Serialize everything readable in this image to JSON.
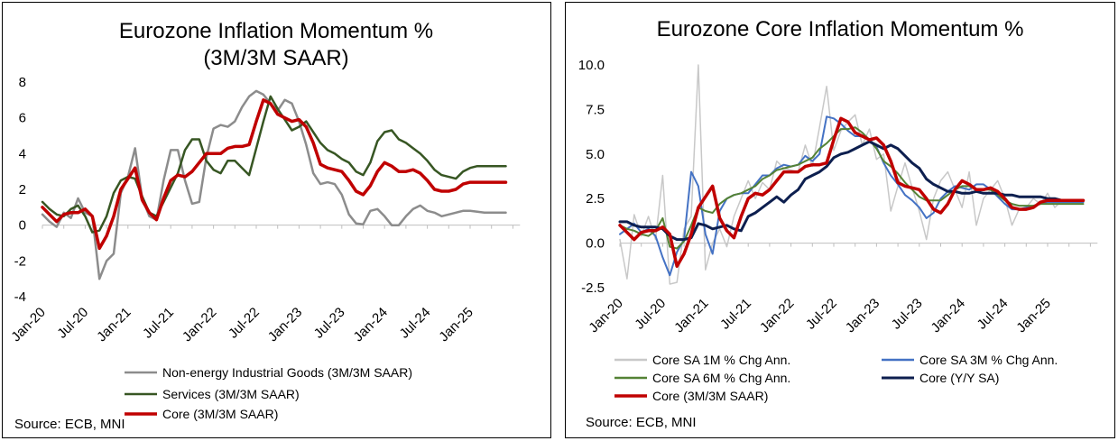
{
  "chart_data": [
    {
      "type": "line",
      "title_lines": [
        "Eurozone Inflation Momentum %",
        "(3M/3M SAAR)"
      ],
      "source": "Source: ECB, MNI",
      "x_tick_labels": [
        "Jan-20",
        "Jul-20",
        "Jan-21",
        "Jul-21",
        "Jan-22",
        "Jul-22",
        "Jan-23",
        "Jul-23",
        "Jan-24",
        "Jul-24",
        "Jan-25"
      ],
      "y_tick_labels": [
        "8",
        "6",
        "4",
        "2",
        "0",
        "-2",
        "-4"
      ],
      "ylim": [
        -4,
        8
      ],
      "n_months": 66,
      "series": [
        {
          "name": "Non-energy Industrial Goods (3M/3M SAAR)",
          "color": "#8c8c8c",
          "width": 2.5,
          "values": [
            0.6,
            0.2,
            -0.1,
            0.7,
            0.4,
            1.5,
            0.7,
            0.5,
            -3.0,
            -2.0,
            -1.6,
            1.8,
            2.7,
            4.3,
            1.5,
            0.5,
            0.3,
            2.5,
            4.2,
            4.2,
            2.5,
            1.2,
            1.3,
            3.8,
            5.4,
            5.6,
            5.5,
            5.8,
            6.6,
            7.2,
            7.5,
            7.3,
            6.8,
            6.4,
            7.0,
            6.8,
            5.8,
            4.5,
            2.9,
            2.3,
            2.4,
            2.3,
            1.7,
            0.6,
            0.1,
            0.05,
            0.8,
            0.9,
            0.5,
            0.0,
            0.0,
            0.5,
            0.9,
            1.1,
            0.8,
            0.7,
            0.5,
            0.6,
            0.7,
            0.8,
            0.8,
            0.75,
            0.7,
            0.7,
            0.7,
            0.7
          ]
        },
        {
          "name": "Services (3M/3M SAAR)",
          "color": "#375623",
          "width": 2.5,
          "values": [
            1.3,
            0.9,
            0.6,
            0.5,
            0.9,
            1.1,
            0.5,
            -0.4,
            -0.3,
            0.5,
            1.8,
            2.5,
            2.7,
            2.6,
            1.6,
            0.7,
            0.5,
            1.3,
            2.1,
            2.9,
            4.2,
            4.8,
            4.8,
            3.6,
            3.1,
            2.9,
            3.6,
            3.6,
            3.2,
            2.8,
            4.3,
            5.8,
            7.2,
            6.5,
            5.9,
            5.3,
            5.5,
            5.8,
            5.2,
            4.6,
            4.2,
            4.0,
            3.7,
            3.5,
            3.0,
            2.8,
            3.5,
            4.7,
            5.2,
            5.3,
            4.8,
            4.6,
            4.3,
            4.0,
            3.6,
            3.1,
            2.8,
            2.7,
            2.6,
            3.0,
            3.2,
            3.3,
            3.3,
            3.3,
            3.3,
            3.3
          ]
        },
        {
          "name": "Core (3M/3M SAAR)",
          "color": "#c00000",
          "width": 3.5,
          "values": [
            1.0,
            0.6,
            0.2,
            0.6,
            0.7,
            0.7,
            0.9,
            0.5,
            -1.3,
            -0.6,
            0.5,
            2.0,
            2.6,
            3.2,
            1.4,
            0.7,
            0.3,
            1.5,
            2.5,
            2.8,
            2.7,
            3.0,
            3.5,
            4.0,
            4.0,
            4.0,
            4.3,
            4.4,
            4.4,
            4.5,
            5.8,
            7.0,
            6.8,
            6.2,
            6.0,
            5.8,
            5.9,
            5.5,
            4.6,
            3.4,
            3.2,
            3.1,
            3.0,
            2.5,
            1.9,
            1.7,
            2.2,
            3.0,
            3.5,
            3.3,
            3.0,
            3.0,
            3.1,
            2.9,
            2.5,
            2.0,
            1.9,
            1.9,
            2.0,
            2.3,
            2.4,
            2.4,
            2.4,
            2.4,
            2.4,
            2.4
          ]
        }
      ]
    },
    {
      "type": "line",
      "title_lines": [
        "Eurozone Core Inflation Momentum %"
      ],
      "source": "Source: ECB, MNI",
      "x_tick_labels": [
        "Jan-20",
        "Jul-20",
        "Jan-21",
        "Jul-21",
        "Jan-22",
        "Jul-22",
        "Jan-23",
        "Jul-23",
        "Jan-24",
        "Jul-24",
        "Jan-25"
      ],
      "y_tick_labels": [
        "10.0",
        "7.5",
        "5.0",
        "2.5",
        "0.0",
        "-2.5"
      ],
      "ylim": [
        -2.5,
        10.0
      ],
      "n_months": 66,
      "series": [
        {
          "name": "Core SA 1M % Chg Ann.",
          "color": "#c8c8c8",
          "width": 1.5,
          "values": [
            0.2,
            -2.0,
            1.6,
            0.4,
            1.5,
            0.2,
            3.8,
            -2.3,
            -2.2,
            0.8,
            1.5,
            10.0,
            -1.5,
            0.0,
            0.8,
            -0.2,
            1.5,
            2.5,
            3.5,
            2.5,
            3.4,
            3.0,
            4.6,
            4.2,
            4.1,
            4.0,
            5.5,
            4.3,
            6.5,
            8.8,
            5.2,
            6.3,
            6.8,
            7.2,
            5.5,
            6.4,
            4.7,
            5.0,
            1.8,
            3.2,
            4.5,
            3.1,
            1.8,
            0.2,
            2.5,
            3.5,
            4.0,
            3.0,
            2.0,
            4.0,
            1.0,
            2.5,
            3.0,
            3.5,
            2.5,
            1.0,
            1.9,
            2.0,
            2.5,
            2.2,
            2.8,
            2.0,
            2.4,
            2.4,
            2.4,
            2.4
          ]
        },
        {
          "name": "Core SA 3M % Chg Ann.",
          "color": "#4472c4",
          "width": 2,
          "values": [
            0.5,
            0.8,
            1.1,
            0.6,
            0.8,
            0.4,
            -0.8,
            -1.8,
            -0.5,
            0.2,
            4.0,
            3.2,
            0.5,
            -0.6,
            1.8,
            2.5,
            2.7,
            2.8,
            2.8,
            3.3,
            3.8,
            3.8,
            4.2,
            4.4,
            4.3,
            4.4,
            4.9,
            4.6,
            5.0,
            7.1,
            7.0,
            6.7,
            6.3,
            6.0,
            6.0,
            5.8,
            5.4,
            4.5,
            3.8,
            3.3,
            2.7,
            2.4,
            2.0,
            1.4,
            1.7,
            2.5,
            2.9,
            3.2,
            3.1,
            3.0,
            3.3,
            3.3,
            3.0,
            2.6,
            2.2,
            1.9,
            1.9,
            2.0,
            2.1,
            2.2,
            2.3,
            2.3,
            2.3,
            2.3,
            2.3,
            2.3
          ]
        },
        {
          "name": "Core SA 6M % Chg Ann.",
          "color": "#548235",
          "width": 2,
          "values": [
            1.0,
            0.8,
            0.7,
            0.5,
            0.4,
            0.7,
            1.4,
            -0.2,
            -0.3,
            0.1,
            1.0,
            2.0,
            1.8,
            1.7,
            2.2,
            2.5,
            2.7,
            2.8,
            3.0,
            3.2,
            3.6,
            3.8,
            4.1,
            4.2,
            4.3,
            4.4,
            4.6,
            4.8,
            5.3,
            5.6,
            6.0,
            6.4,
            6.4,
            6.5,
            6.2,
            5.8,
            5.3,
            4.6,
            4.3,
            3.9,
            3.4,
            3.0,
            2.6,
            2.4,
            2.4,
            2.4,
            2.7,
            3.0,
            3.2,
            3.2,
            3.0,
            3.0,
            3.0,
            2.7,
            2.4,
            2.2,
            2.1,
            2.1,
            2.1,
            2.2,
            2.2,
            2.2,
            2.2,
            2.2,
            2.2,
            2.2
          ]
        },
        {
          "name": "Core (Y/Y SA)",
          "color": "#0d1f4f",
          "width": 3,
          "values": [
            1.2,
            1.2,
            1.0,
            0.9,
            0.9,
            0.9,
            0.8,
            0.4,
            0.2,
            0.2,
            0.3,
            1.1,
            1.0,
            0.8,
            0.9,
            1.0,
            0.8,
            0.7,
            1.5,
            1.7,
            2.0,
            2.3,
            2.6,
            2.3,
            2.7,
            3.0,
            3.6,
            3.8,
            4.0,
            4.3,
            4.8,
            5.0,
            5.1,
            5.3,
            5.5,
            5.7,
            5.5,
            5.3,
            5.5,
            5.3,
            4.9,
            4.5,
            4.2,
            3.6,
            3.3,
            3.1,
            2.9,
            2.9,
            2.8,
            2.8,
            2.9,
            2.8,
            2.8,
            2.8,
            2.7,
            2.7,
            2.6,
            2.6,
            2.6,
            2.6,
            2.5,
            2.5,
            2.4,
            2.4,
            2.4,
            2.4
          ]
        },
        {
          "name": "Core (3M/3M SAAR)",
          "color": "#c00000",
          "width": 3.5,
          "values": [
            1.0,
            0.6,
            0.2,
            0.6,
            0.7,
            0.7,
            0.9,
            0.5,
            -1.3,
            -0.6,
            0.5,
            2.0,
            2.6,
            3.2,
            1.4,
            0.7,
            0.3,
            1.5,
            2.5,
            2.8,
            2.7,
            3.0,
            3.5,
            4.0,
            4.0,
            4.0,
            4.3,
            4.4,
            4.4,
            4.5,
            5.8,
            7.0,
            6.8,
            6.2,
            6.0,
            5.8,
            5.9,
            5.5,
            4.6,
            3.4,
            3.2,
            3.1,
            3.0,
            2.5,
            1.9,
            1.7,
            2.2,
            3.0,
            3.5,
            3.3,
            3.0,
            3.0,
            3.1,
            2.9,
            2.5,
            2.0,
            1.9,
            1.9,
            2.0,
            2.3,
            2.4,
            2.4,
            2.4,
            2.4,
            2.4,
            2.4
          ]
        }
      ]
    }
  ]
}
